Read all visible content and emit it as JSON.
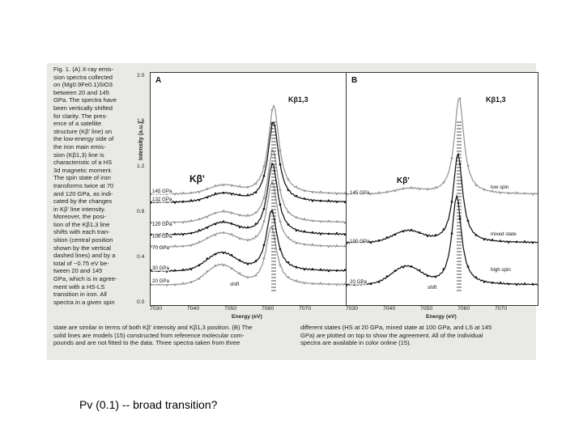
{
  "slide": {
    "bottom_text": "Pv (0.1) -- broad transition?"
  },
  "figure": {
    "caption_column": [
      "Fig. 1. (A) X-ray emis-",
      "sion spectra collected",
      "on (Mg0.9Fe0.1)SiO3",
      "between 20 and 145",
      "GPa. The spectra have",
      "been vertically shifted",
      "for clarity. The pres-",
      "ence of a satellite",
      "structure (Kβ' line) on",
      "the low-energy side of",
      "the iron main emis-",
      "sion (Kβ1,3) line is",
      "characteristic of a HS",
      "3d magnetic moment.",
      "The spin state of iron",
      "transforms twice at 70",
      "and 120 GPa, as indi-",
      "cated by the changes",
      "in Kβ' line intensity.",
      "Moreover, the posi-",
      "tion of the Kβ1,3 line",
      "shifts with each tran-",
      "sition (central position",
      "shown by the vertical",
      "dashed lines) and by a",
      "total of ~0.75 eV be-",
      "tween 20 and 145",
      "GPa, which is in agree-",
      "ment with a HS-LS",
      "transition in iron. All",
      "spectra in a given spin"
    ],
    "caption_tail_left": [
      "state are similar in terms of both Kβ' intensity and Kβ1,3 position. (B) The",
      "solid lines are models (15) constructed from reference molecular com-",
      "pounds and are not fitted to the data. Three spectra taken from three"
    ],
    "caption_tail_right": [
      "different states (HS at 20 GPa, mixed state at 100 GPa, and LS at 145",
      "GPa) are plotted on top to show the agreement. All of the individual",
      "spectra are available in color online (15)."
    ],
    "y_axis_label": "Intensity (a.u.)",
    "x_axis_label": "Energy (eV)",
    "panel_a": {
      "letter": "A",
      "peak_label": "Kβ1,3",
      "satellite_label": "Kβ'",
      "shift_label": "shift",
      "y_ticks": [
        "2.0",
        "1.6",
        "1.2",
        "0.8",
        "0.4",
        "0.0"
      ],
      "x_ticks": [
        "7030",
        "7040",
        "7050",
        "7060",
        "7070"
      ],
      "pressures": [
        "145 GPa",
        "132 GPa",
        "120 GPa",
        "100 GPa",
        "70 GPa",
        "30 GPa",
        "20 GPa"
      ]
    },
    "panel_b": {
      "letter": "B",
      "peak_label": "Kβ1,3",
      "satellite_label": "Kβ'",
      "shift_label": "shift",
      "x_ticks": [
        "7030",
        "7040",
        "7050",
        "7060",
        "7070"
      ],
      "pressures": [
        "145 GPa",
        "100 GPa",
        "20 GPa"
      ],
      "states": [
        "low spin",
        "mixed state",
        "high spin"
      ]
    },
    "colors": {
      "background": "#e9e9e6",
      "light_series": "#9a9a9a",
      "dark_series": "#1a1a1a"
    }
  }
}
